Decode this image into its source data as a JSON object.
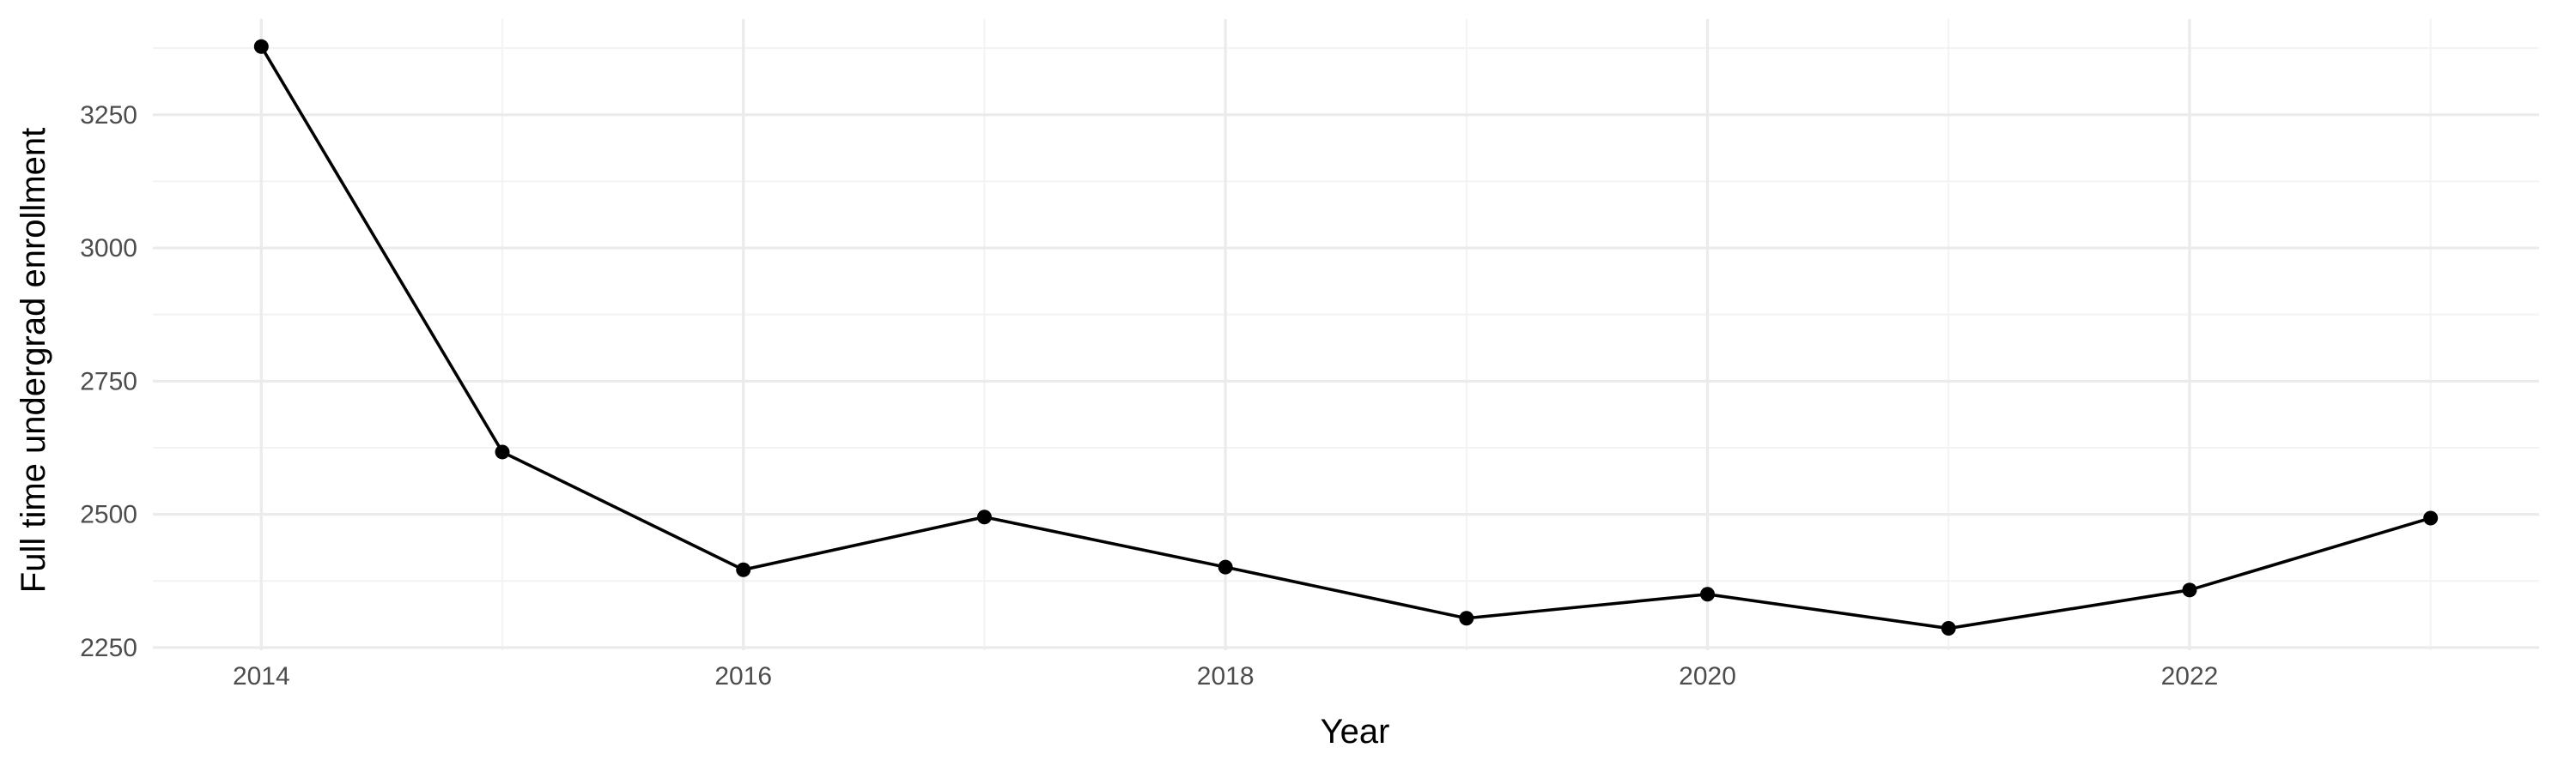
{
  "chart_data": {
    "type": "line",
    "title": "",
    "xlabel": "Year",
    "ylabel": "Full time undergrad enrollment",
    "x": [
      2014,
      2015,
      2016,
      2017,
      2018,
      2019,
      2020,
      2021,
      2022,
      2023
    ],
    "series": [
      {
        "values": [
          3378,
          2617,
          2396,
          2495,
          2401,
          2305,
          2350,
          2286,
          2358,
          2493
        ]
      }
    ],
    "xlim": [
      2013.55,
      2023.45
    ],
    "ylim": [
      2245,
      3430
    ],
    "x_ticks": [
      2014,
      2016,
      2018,
      2020,
      2022
    ],
    "x_tick_labels": [
      "2014",
      "2016",
      "2018",
      "2020",
      "2022"
    ],
    "y_ticks": [
      2250,
      2500,
      2750,
      3000,
      3250
    ],
    "y_tick_labels": [
      "2250",
      "2500",
      "2750",
      "3000",
      "3250"
    ],
    "grid": true,
    "colors": {
      "line": "#000000",
      "points": "#000000",
      "grid": "#ebebeb",
      "background": "#ffffff"
    }
  }
}
